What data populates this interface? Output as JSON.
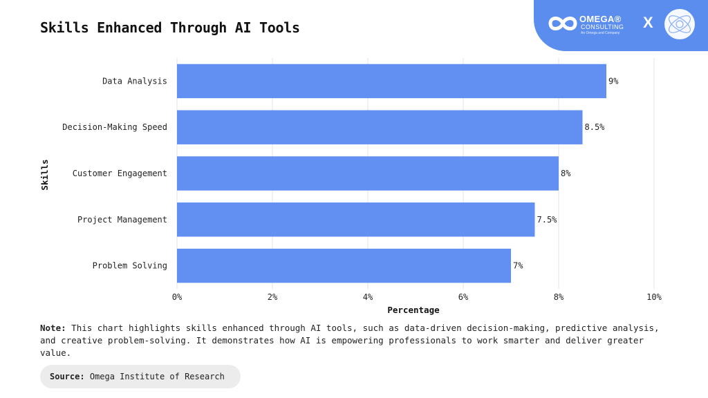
{
  "title": "Skills Enhanced Through AI Tools",
  "brand": {
    "name": "OMEGA®",
    "sub": "CONSULTING",
    "tagline": "An Omega and Company",
    "separator": "X",
    "color": "#5b8def"
  },
  "chart_data": {
    "type": "bar",
    "orientation": "horizontal",
    "categories": [
      "Data Analysis",
      "Decision-Making Speed",
      "Customer Engagement",
      "Project Management",
      "Problem Solving"
    ],
    "values": [
      9,
      8.5,
      8,
      7.5,
      7
    ],
    "data_labels": [
      "9%",
      "8.5%",
      "8%",
      "7.5%",
      "7%"
    ],
    "xlabel": "Percentage",
    "ylabel": "Skills",
    "xlim": [
      0,
      10
    ],
    "xticks": [
      0,
      2,
      4,
      6,
      8,
      10
    ],
    "xtick_labels": [
      "0%",
      "2%",
      "4%",
      "6%",
      "8%",
      "10%"
    ],
    "grid": "vertical",
    "bar_color": "#6190f2"
  },
  "note": {
    "label": "Note:",
    "text": "This chart highlights skills enhanced through AI tools, such as data-driven decision-making, predictive analysis, and creative problem-solving. It demonstrates how AI is empowering professionals to work smarter and deliver greater value."
  },
  "source": {
    "label": "Source:",
    "text": "Omega Institute of Research"
  }
}
